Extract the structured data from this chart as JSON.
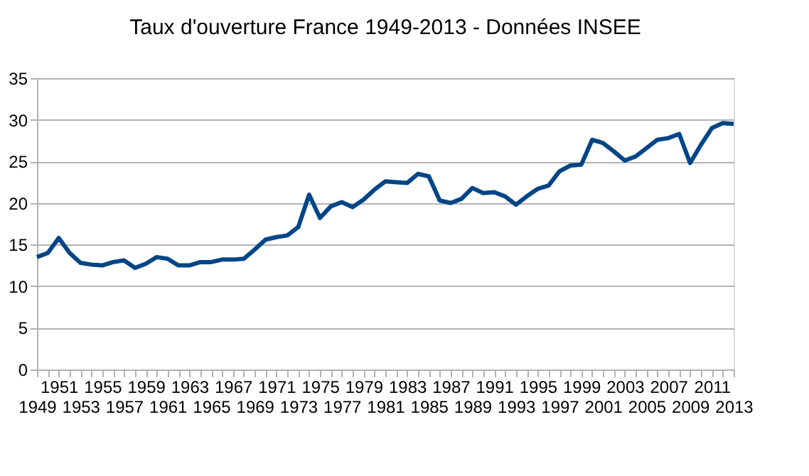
{
  "chart_data": {
    "type": "line",
    "title": "Taux d'ouverture France 1949-2013 - Données INSEE",
    "categories": [
      "1949",
      null,
      "1951",
      null,
      "1953",
      null,
      "1955",
      null,
      "1957",
      null,
      "1959",
      null,
      "1961",
      null,
      "1963",
      null,
      "1965",
      null,
      "1967",
      null,
      "1969",
      null,
      "1971",
      null,
      "1973",
      null,
      "1975",
      null,
      "1977",
      null,
      "1979",
      null,
      "1981",
      null,
      "1983",
      null,
      "1985",
      null,
      "1987",
      null,
      "1989",
      null,
      "1991",
      null,
      "1993",
      null,
      "1995",
      null,
      "1997",
      null,
      "1999",
      null,
      "2001",
      null,
      "2003",
      null,
      "2005",
      null,
      "2007",
      null,
      "2009",
      null,
      "2011",
      null,
      "2013"
    ],
    "series": [
      {
        "color": "#004586",
        "values": [
          13.5,
          14,
          15.8,
          14,
          12.8,
          12.6,
          12.5,
          12.9,
          13.1,
          12.2,
          12.7,
          13.5,
          13.3,
          12.5,
          12.5,
          12.9,
          12.9,
          13.2,
          13.2,
          13.3,
          14.4,
          15.6,
          15.9,
          16.1,
          17.1,
          21.0,
          18.2,
          19.6,
          20.1,
          19.5,
          20.4,
          21.6,
          22.6,
          22.5,
          22.4,
          23.5,
          23.2,
          20.3,
          20.0,
          20.5,
          21.8,
          21.2,
          21.3,
          20.8,
          19.8,
          20.8,
          21.7,
          22.1,
          23.8,
          24.5,
          24.6,
          27.6,
          27.2,
          26.2,
          25.1,
          25.6,
          26.6,
          27.6,
          27.8,
          28.3,
          24.8,
          27.0,
          29.0,
          29.6,
          29.5
        ]
      }
    ],
    "ylim": [
      0,
      35
    ],
    "yticks": [
      0,
      5,
      10,
      15,
      20,
      25,
      30,
      35
    ],
    "grid": "y",
    "marker": "none",
    "line_style": "solid"
  }
}
